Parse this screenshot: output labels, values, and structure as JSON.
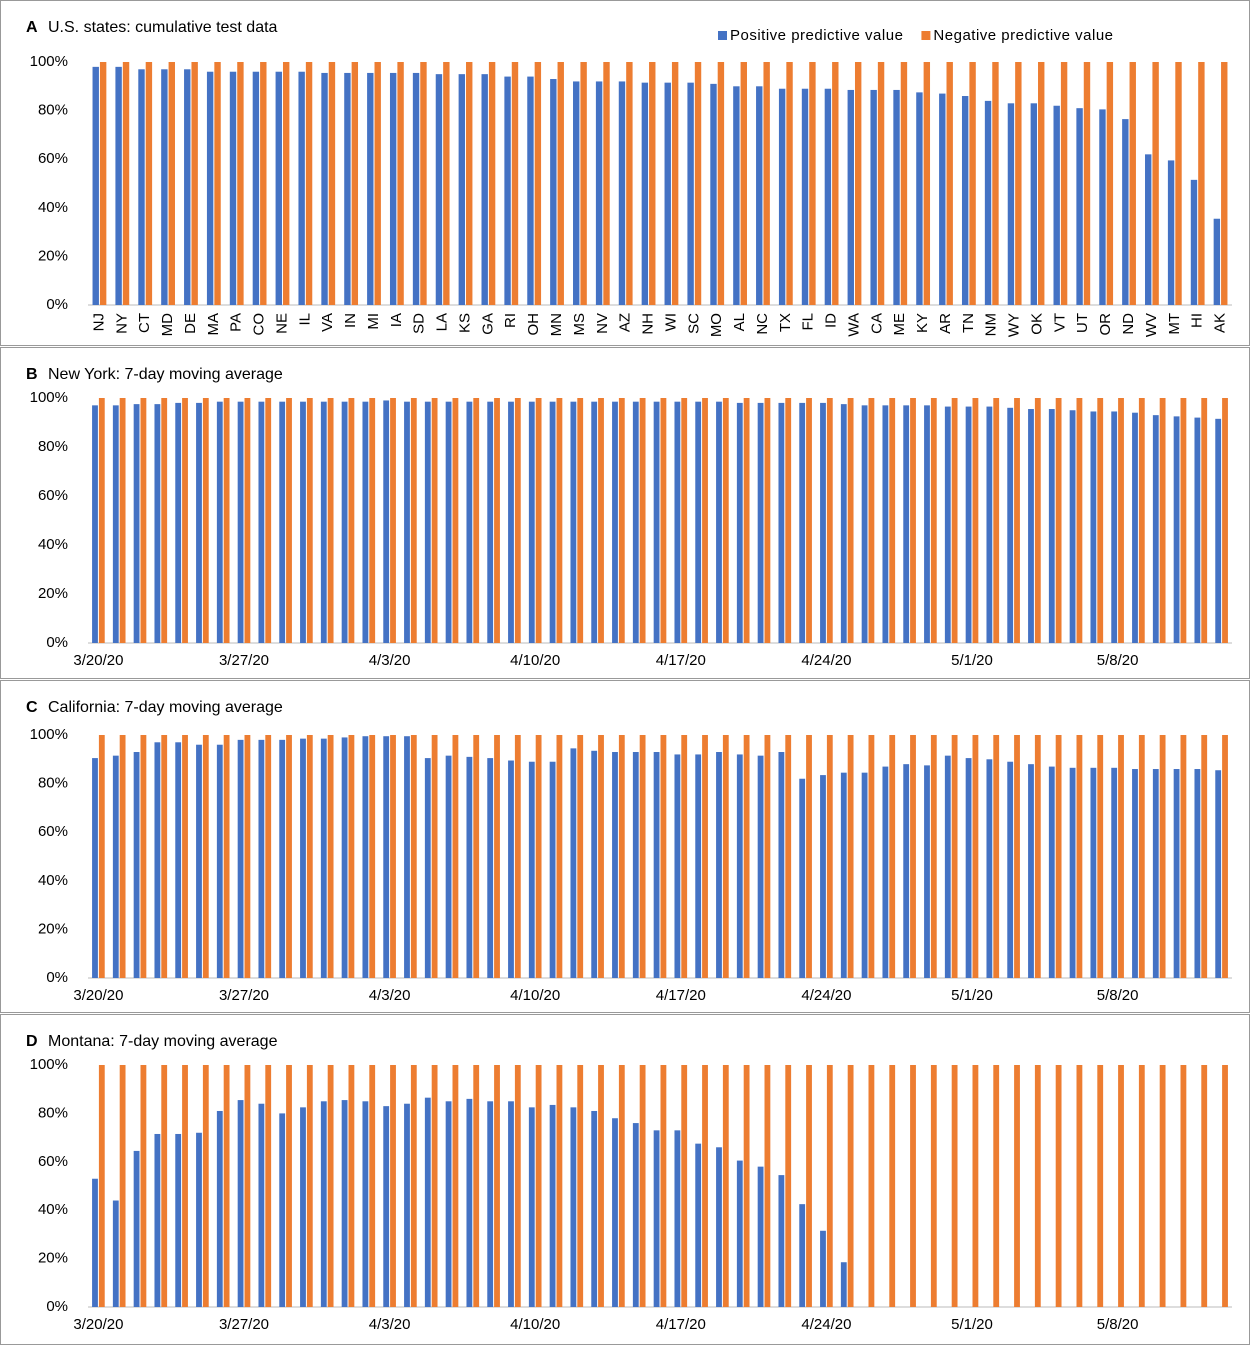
{
  "chart_data": [
    {
      "type": "bar",
      "label": "A",
      "title": "U.S. states: cumulative test data",
      "legend": "top-right",
      "categories": [
        "NJ",
        "NY",
        "CT",
        "MD",
        "DE",
        "MA",
        "PA",
        "CO",
        "NE",
        "IL",
        "VA",
        "IN",
        "MI",
        "IA",
        "SD",
        "LA",
        "KS",
        "GA",
        "RI",
        "OH",
        "MN",
        "MS",
        "NV",
        "AZ",
        "NH",
        "WI",
        "SC",
        "MO",
        "AL",
        "NC",
        "TX",
        "FL",
        "ID",
        "WA",
        "CA",
        "ME",
        "KY",
        "AR",
        "TN",
        "NM",
        "WY",
        "OK",
        "VT",
        "UT",
        "OR",
        "ND",
        "WV",
        "MT",
        "HI",
        "AK"
      ],
      "series": [
        {
          "name": "Positive predictive value",
          "color": "#4472c4",
          "values": [
            98,
            98,
            97,
            97,
            97,
            96,
            96,
            96,
            96,
            96,
            95.5,
            95.5,
            95.5,
            95.5,
            95.5,
            95,
            95,
            95,
            94,
            94,
            93,
            92,
            92,
            92,
            91.5,
            91.5,
            91.5,
            91,
            90,
            90,
            89,
            89,
            89,
            88.5,
            88.5,
            88.5,
            87.5,
            87,
            86,
            84,
            83,
            83,
            82,
            81,
            80.5,
            76.5,
            62,
            59.5,
            51.5,
            35.5
          ]
        },
        {
          "name": "Negative predictive value",
          "color": "#ed7d31",
          "values": [
            100,
            100,
            100,
            100,
            100,
            100,
            100,
            100,
            100,
            100,
            100,
            100,
            100,
            100,
            100,
            100,
            100,
            100,
            100,
            100,
            100,
            100,
            100,
            100,
            100,
            100,
            100,
            100,
            100,
            100,
            100,
            100,
            100,
            100,
            100,
            100,
            100,
            100,
            100,
            100,
            100,
            100,
            100,
            100,
            100,
            100,
            100,
            100,
            100,
            100
          ]
        }
      ],
      "ylim": [
        0,
        100
      ],
      "yticks": [
        {
          "value": 0,
          "label": "0%"
        },
        {
          "value": 20,
          "label": "20%"
        },
        {
          "value": 40,
          "label": "40%"
        },
        {
          "value": 60,
          "label": "60%"
        },
        {
          "value": 80,
          "label": "80%"
        },
        {
          "value": 100,
          "label": "100%"
        }
      ]
    },
    {
      "type": "bar",
      "label": "B",
      "title": "New York: 7-day moving average",
      "categories": [
        "3/20/20",
        null,
        null,
        null,
        null,
        null,
        null,
        "3/27/20",
        null,
        null,
        null,
        null,
        null,
        null,
        "4/3/20",
        null,
        null,
        null,
        null,
        null,
        null,
        "4/10/20",
        null,
        null,
        null,
        null,
        null,
        null,
        "4/17/20",
        null,
        null,
        null,
        null,
        null,
        null,
        "4/24/20",
        null,
        null,
        null,
        null,
        null,
        null,
        "5/1/20",
        null,
        null,
        null,
        null,
        null,
        null,
        "5/8/20",
        null,
        null,
        null,
        null,
        null
      ],
      "series": [
        {
          "color": "#4472c4",
          "values": [
            97,
            97,
            97.5,
            97.5,
            98,
            98,
            98.5,
            98.5,
            98.5,
            98.5,
            98.5,
            98.5,
            98.5,
            98.5,
            99,
            98.5,
            98.5,
            98.5,
            98.5,
            98.5,
            98.5,
            98.5,
            98.5,
            98.5,
            98.5,
            98.5,
            98.5,
            98.5,
            98.5,
            98.5,
            98.5,
            98,
            98,
            98,
            98,
            98,
            97.5,
            97,
            97,
            97,
            97,
            96.5,
            96.5,
            96.5,
            96,
            95.5,
            95.5,
            95,
            94.5,
            94.5,
            94,
            93,
            92.5,
            92,
            91.5
          ]
        },
        {
          "color": "#ed7d31",
          "values": [
            100,
            100,
            100,
            100,
            100,
            100,
            100,
            100,
            100,
            100,
            100,
            100,
            100,
            100,
            100,
            100,
            100,
            100,
            100,
            100,
            100,
            100,
            100,
            100,
            100,
            100,
            100,
            100,
            100,
            100,
            100,
            100,
            100,
            100,
            100,
            100,
            100,
            100,
            100,
            100,
            100,
            100,
            100,
            100,
            100,
            100,
            100,
            100,
            100,
            100,
            100,
            100,
            100,
            100,
            100
          ]
        }
      ],
      "ylim": [
        0,
        100
      ],
      "yticks": [
        {
          "value": 0,
          "label": "0%"
        },
        {
          "value": 20,
          "label": "20%"
        },
        {
          "value": 40,
          "label": "40%"
        },
        {
          "value": 60,
          "label": "60%"
        },
        {
          "value": 80,
          "label": "80%"
        },
        {
          "value": 100,
          "label": "100%"
        }
      ]
    },
    {
      "type": "bar",
      "label": "C",
      "title": "California: 7-day moving average",
      "categories": [
        "3/20/20",
        null,
        null,
        null,
        null,
        null,
        null,
        "3/27/20",
        null,
        null,
        null,
        null,
        null,
        null,
        "4/3/20",
        null,
        null,
        null,
        null,
        null,
        null,
        "4/10/20",
        null,
        null,
        null,
        null,
        null,
        null,
        "4/17/20",
        null,
        null,
        null,
        null,
        null,
        null,
        "4/24/20",
        null,
        null,
        null,
        null,
        null,
        null,
        "5/1/20",
        null,
        null,
        null,
        null,
        null,
        null,
        "5/8/20",
        null,
        null,
        null,
        null,
        null
      ],
      "series": [
        {
          "color": "#4472c4",
          "values": [
            90.5,
            91.5,
            93,
            97,
            97,
            96,
            96,
            98,
            98,
            98,
            98.5,
            98.5,
            99,
            99.5,
            99.5,
            99.5,
            90.5,
            91.5,
            91,
            90.5,
            89.5,
            89,
            89,
            94.5,
            93.5,
            93,
            93,
            93,
            92,
            92,
            93,
            92,
            91.5,
            93,
            82,
            83.5,
            84.5,
            84.5,
            87,
            88,
            87.5,
            91.5,
            90.5,
            90,
            89,
            88,
            87,
            86.5,
            86.5,
            86.5,
            86,
            86,
            86,
            86,
            85.5
          ]
        },
        {
          "color": "#ed7d31",
          "values": [
            100,
            100,
            100,
            100,
            100,
            100,
            100,
            100,
            100,
            100,
            100,
            100,
            100,
            100,
            100,
            100,
            100,
            100,
            100,
            100,
            100,
            100,
            100,
            100,
            100,
            100,
            100,
            100,
            100,
            100,
            100,
            100,
            100,
            100,
            100,
            100,
            100,
            100,
            100,
            100,
            100,
            100,
            100,
            100,
            100,
            100,
            100,
            100,
            100,
            100,
            100,
            100,
            100,
            100,
            100
          ]
        }
      ],
      "ylim": [
        0,
        100
      ],
      "yticks": [
        {
          "value": 0,
          "label": "0%"
        },
        {
          "value": 20,
          "label": "20%"
        },
        {
          "value": 40,
          "label": "40%"
        },
        {
          "value": 60,
          "label": "60%"
        },
        {
          "value": 80,
          "label": "80%"
        },
        {
          "value": 100,
          "label": "100%"
        }
      ]
    },
    {
      "type": "bar",
      "label": "D",
      "title": "Montana: 7-day moving average",
      "categories": [
        "3/20/20",
        null,
        null,
        null,
        null,
        null,
        null,
        "3/27/20",
        null,
        null,
        null,
        null,
        null,
        null,
        "4/3/20",
        null,
        null,
        null,
        null,
        null,
        null,
        "4/10/20",
        null,
        null,
        null,
        null,
        null,
        null,
        "4/17/20",
        null,
        null,
        null,
        null,
        null,
        null,
        "4/24/20",
        null,
        null,
        null,
        null,
        null,
        null,
        "5/1/20",
        null,
        null,
        null,
        null,
        null,
        null,
        "5/8/20",
        null,
        null,
        null,
        null,
        null
      ],
      "series": [
        {
          "color": "#4472c4",
          "values": [
            53,
            44,
            64.5,
            71.5,
            71.5,
            72,
            81,
            85.5,
            84,
            80,
            82.5,
            85,
            85.5,
            85,
            83,
            84,
            86.5,
            85,
            86,
            85,
            85,
            82.5,
            83.5,
            82.5,
            81,
            78,
            76,
            73,
            73,
            67.5,
            66,
            60.5,
            58,
            54.5,
            42.5,
            31.5,
            18.5,
            null,
            null,
            null,
            null,
            null,
            null,
            null,
            null,
            null,
            null,
            null,
            null,
            null,
            null,
            null,
            null,
            null,
            null
          ]
        },
        {
          "color": "#ed7d31",
          "values": [
            100,
            100,
            100,
            100,
            100,
            100,
            100,
            100,
            100,
            100,
            100,
            100,
            100,
            100,
            100,
            100,
            100,
            100,
            100,
            100,
            100,
            100,
            100,
            100,
            100,
            100,
            100,
            100,
            100,
            100,
            100,
            100,
            100,
            100,
            100,
            100,
            100,
            100,
            100,
            100,
            100,
            100,
            100,
            100,
            100,
            100,
            100,
            100,
            100,
            100,
            100,
            100,
            100,
            100,
            100
          ]
        }
      ],
      "ylim": [
        0,
        100
      ],
      "yticks": [
        {
          "value": 0,
          "label": "0%"
        },
        {
          "value": 20,
          "label": "20%"
        },
        {
          "value": 40,
          "label": "40%"
        },
        {
          "value": 60,
          "label": "60%"
        },
        {
          "value": 80,
          "label": "80%"
        },
        {
          "value": 100,
          "label": "100%"
        }
      ]
    }
  ]
}
